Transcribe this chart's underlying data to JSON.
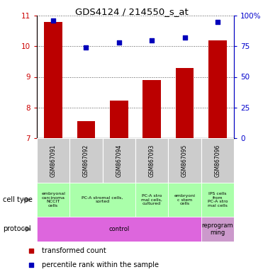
{
  "title": "GDS4124 / 214550_s_at",
  "samples": [
    "GSM867091",
    "GSM867092",
    "GSM867094",
    "GSM867093",
    "GSM867095",
    "GSM867096"
  ],
  "bar_values": [
    10.8,
    7.55,
    8.22,
    8.9,
    9.3,
    10.2
  ],
  "scatter_values": [
    96,
    74,
    78,
    80,
    82,
    95
  ],
  "ylim_left": [
    7,
    11
  ],
  "ylim_right": [
    0,
    100
  ],
  "yticks_left": [
    7,
    8,
    9,
    10,
    11
  ],
  "yticks_right": [
    0,
    25,
    50,
    75,
    100
  ],
  "ytick_labels_right": [
    "0",
    "25",
    "50",
    "75",
    "100%"
  ],
  "bar_color": "#bb0000",
  "scatter_color": "#0000bb",
  "bar_width": 0.55,
  "cell_type_color": "#aaffaa",
  "sample_bg_color": "#cccccc",
  "left_label_color": "#cc0000",
  "right_label_color": "#0000cc",
  "grid_color": "#555555",
  "protocol_color1": "#dd66dd",
  "protocol_color2": "#cc99cc",
  "legend_items": [
    {
      "label": "transformed count",
      "color": "#bb0000"
    },
    {
      "label": "percentile rank within the sample",
      "color": "#0000bb"
    }
  ]
}
